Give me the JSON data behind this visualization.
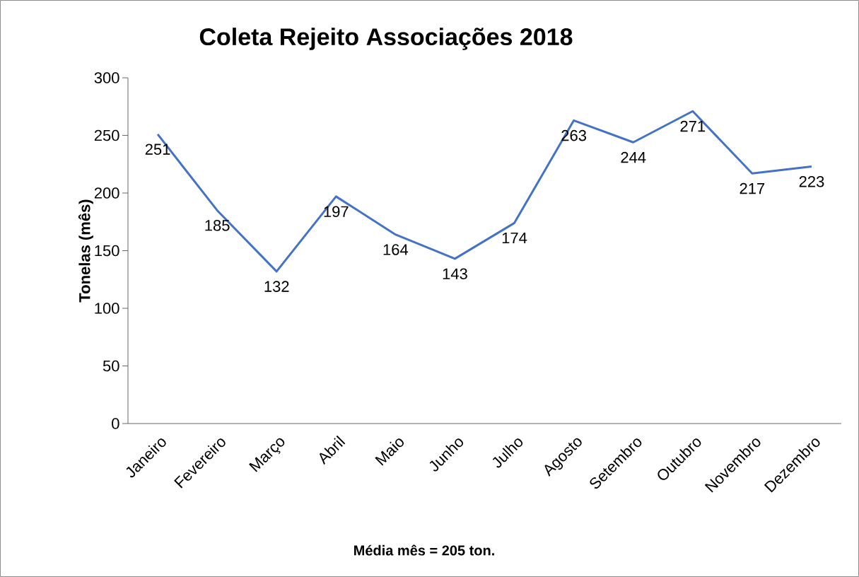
{
  "chart_data": {
    "type": "line",
    "title": "Coleta Rejeito Associações 2018",
    "ylabel": "Tonelas (mês)",
    "categories": [
      "Janeiro",
      "Fevereiro",
      "Março",
      "Abril",
      "Maio",
      "Junho",
      "Julho",
      "Agosto",
      "Setembro",
      "Outubro",
      "Novembro",
      "Dezembro"
    ],
    "values": [
      251,
      185,
      132,
      197,
      164,
      143,
      174,
      263,
      244,
      271,
      217,
      223
    ],
    "color": "#4472c4",
    "ylim": [
      0,
      300
    ],
    "yticks": [
      0,
      50,
      100,
      150,
      200,
      250,
      300
    ],
    "data_labels": true,
    "marker": "none",
    "line_style": "solid",
    "annotations": [
      "Média mês = 205 ton."
    ]
  }
}
